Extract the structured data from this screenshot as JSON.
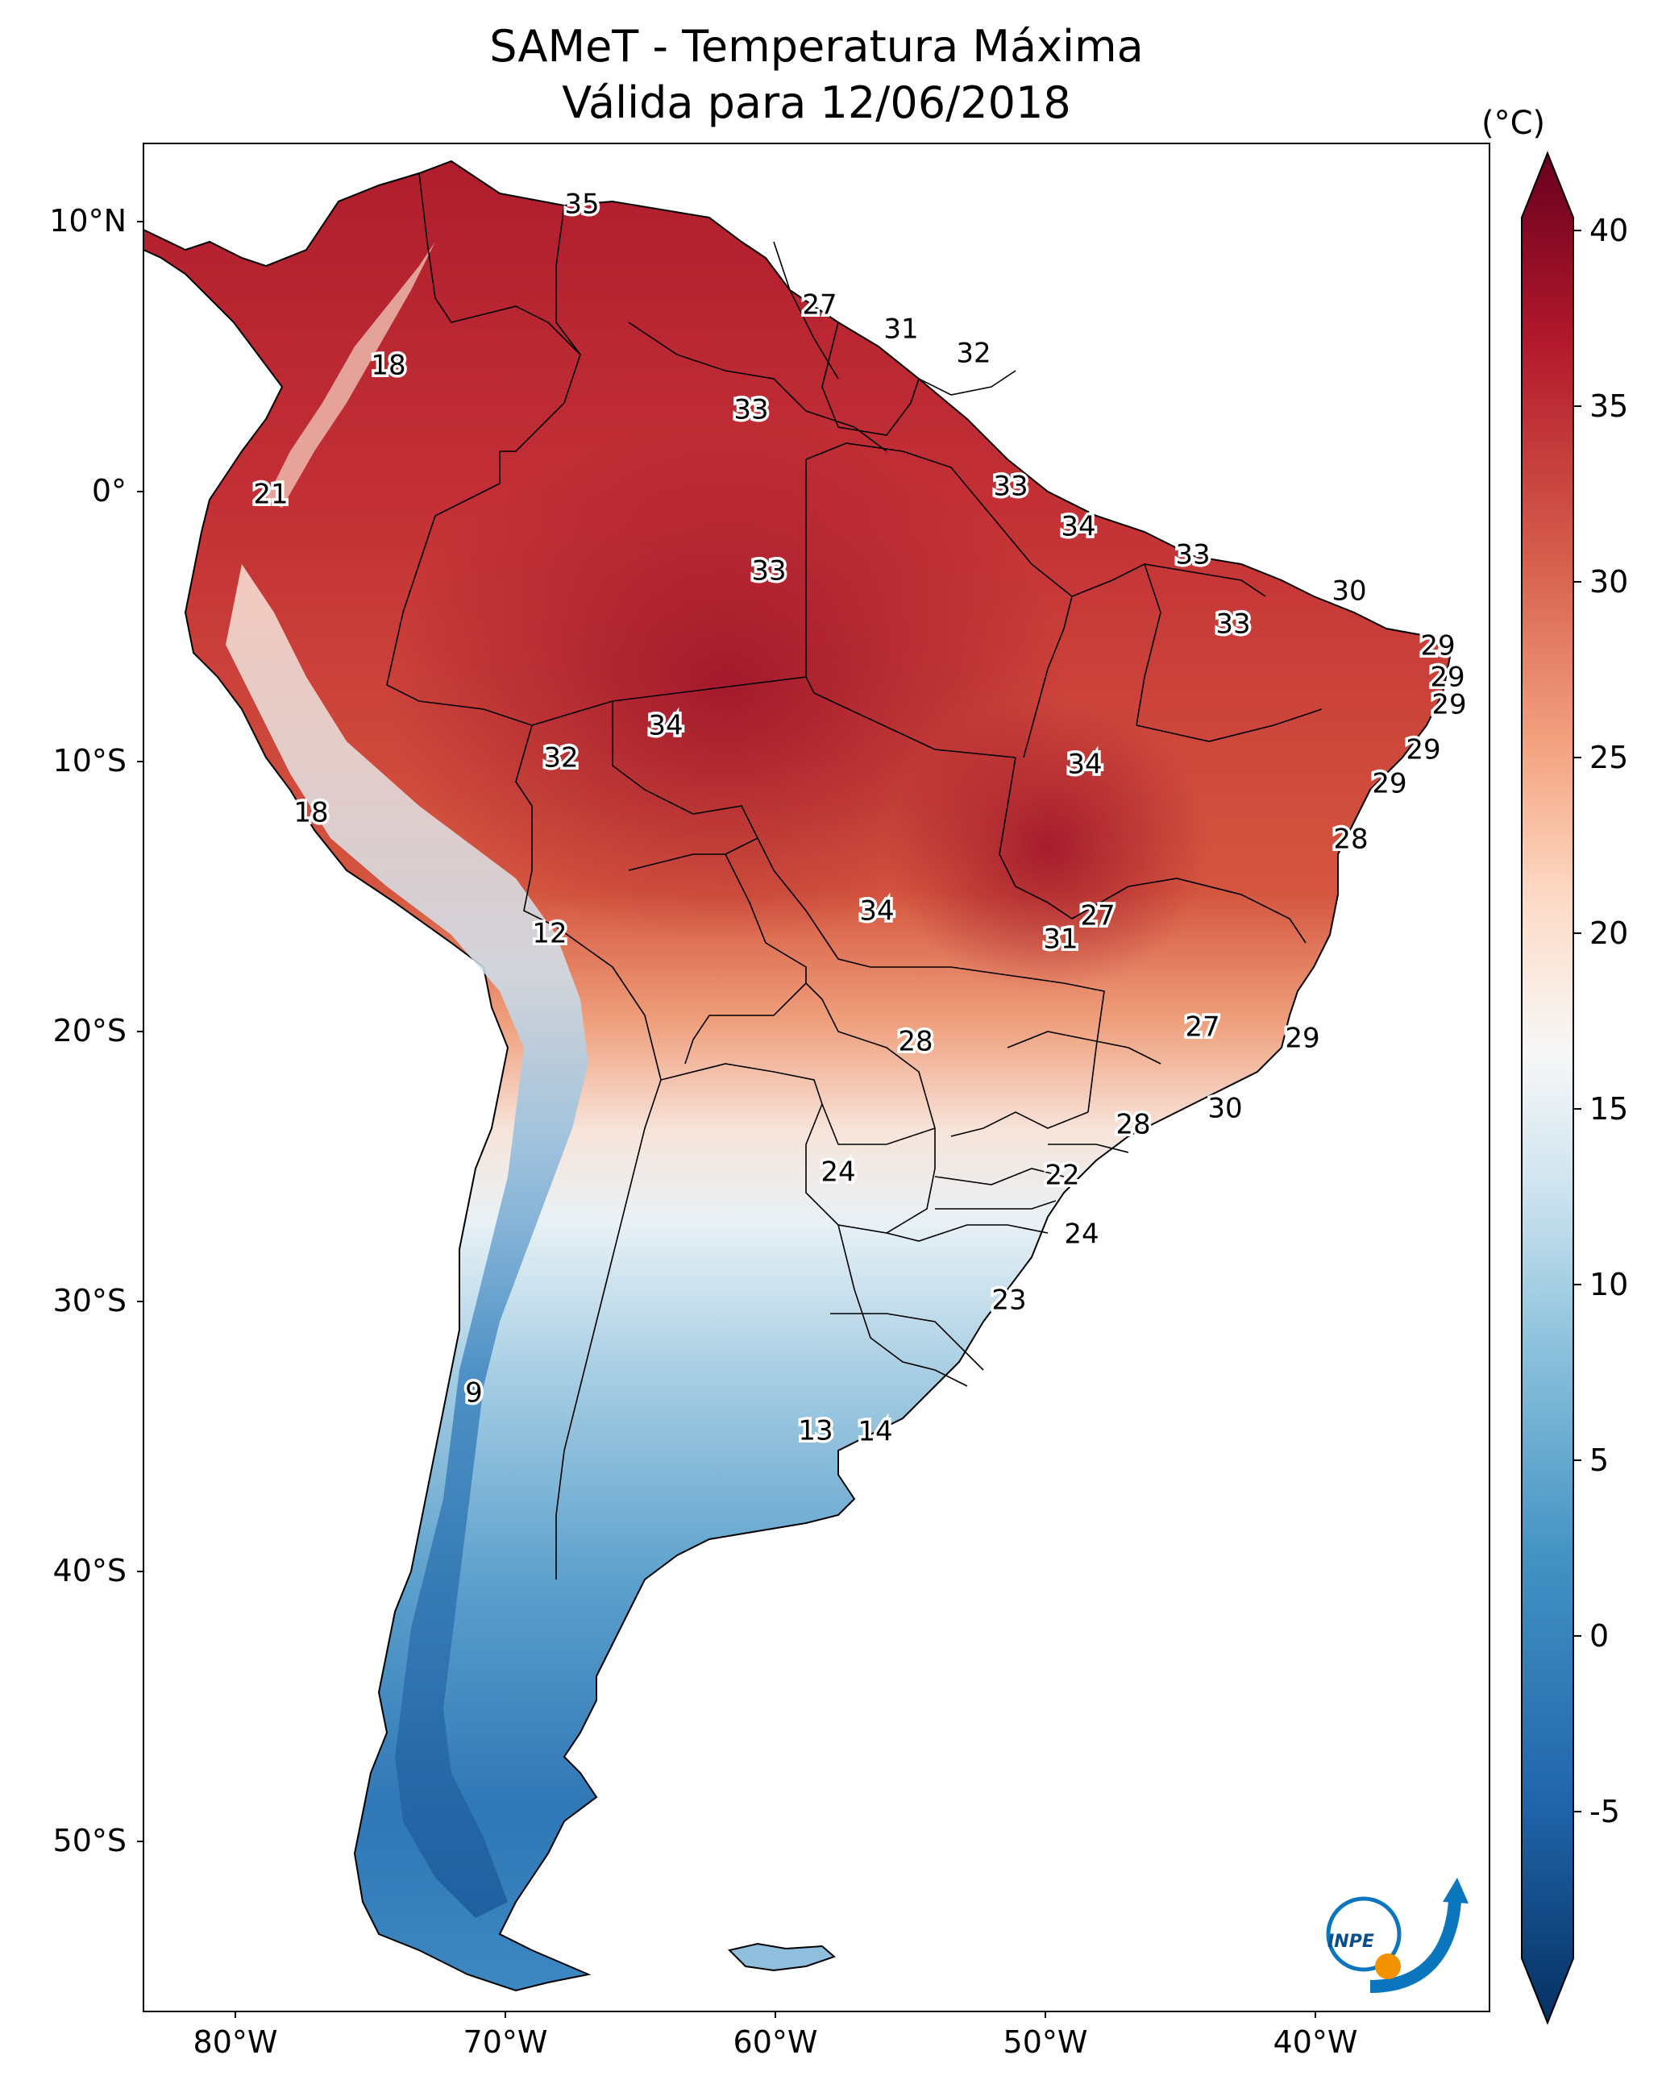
{
  "title_line1": "SAMeT - Temperatura Máxima",
  "title_line2": "Válida para 12/06/2018",
  "colorbar": {
    "unit": "(°C)",
    "range": [
      -7,
      42
    ],
    "ticks": [
      "40",
      "35",
      "30",
      "25",
      "20",
      "15",
      "10",
      "5",
      "0",
      "-5"
    ],
    "colors": [
      "#053061",
      "#2166ac",
      "#4393c3",
      "#92c5de",
      "#d1e5f0",
      "#f7f7f7",
      "#fddbc7",
      "#f4a582",
      "#d6604d",
      "#b2182b",
      "#67001f"
    ]
  },
  "axes": {
    "lat_labels": [
      "10°N",
      "0°",
      "10°S",
      "20°S",
      "30°S",
      "40°S",
      "50°S"
    ],
    "lon_labels": [
      "80°W",
      "70°W",
      "60°W",
      "50°W",
      "40°W"
    ]
  },
  "contour_labels": [
    "35",
    "27",
    "31",
    "32",
    "18",
    "33",
    "33",
    "21",
    "34",
    "33",
    "33",
    "30",
    "33",
    "29",
    "29",
    "29",
    "34",
    "32",
    "34",
    "29",
    "18",
    "29",
    "28",
    "12",
    "34",
    "27",
    "31",
    "27",
    "28",
    "29",
    "30",
    "28",
    "24",
    "22",
    "24",
    "23",
    "9",
    "13",
    "14"
  ],
  "logo": {
    "text": "INPE",
    "colors": [
      "#0b76bd",
      "#f39200"
    ]
  }
}
